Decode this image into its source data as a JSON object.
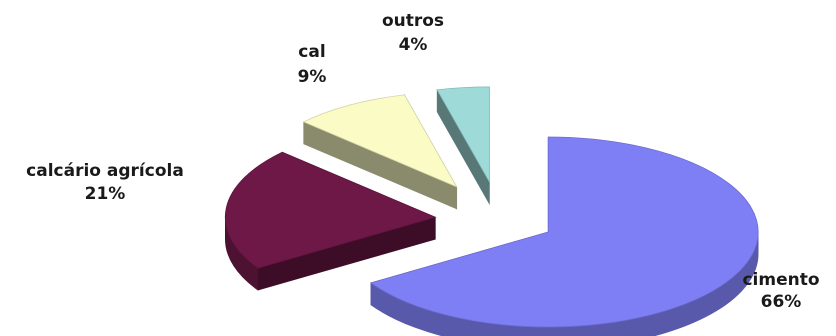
{
  "chart_data": {
    "type": "pie",
    "style": "3d-exploded",
    "unit": "%",
    "slices": [
      {
        "label": "cimento",
        "value": 66,
        "value_label": "66%",
        "color": "#7f7ff5"
      },
      {
        "label": "calcário agrícola",
        "value": 21,
        "value_label": "21%",
        "color": "#6e1848"
      },
      {
        "label": "cal",
        "value": 9,
        "value_label": "9%",
        "color": "#fbfbc6"
      },
      {
        "label": "outros",
        "value": 4,
        "value_label": "4%",
        "color": "#9edbd8"
      }
    ]
  }
}
